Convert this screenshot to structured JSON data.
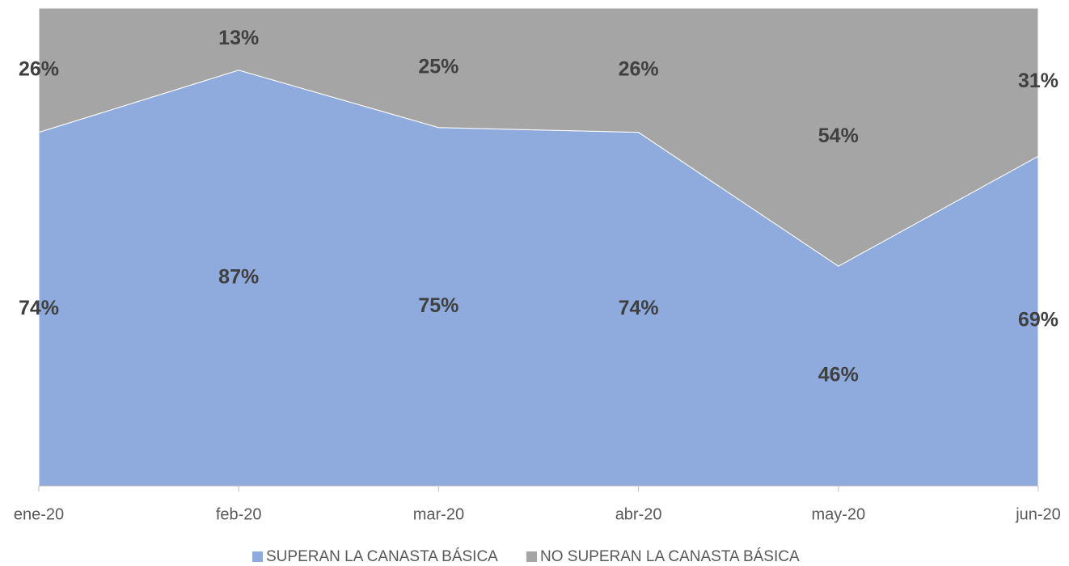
{
  "chart_data": {
    "type": "stacked_area",
    "categories": [
      "ene-20",
      "feb-20",
      "mar-20",
      "abr-20",
      "may-20",
      "jun-20"
    ],
    "series": [
      {
        "name": "SUPERAN LA CANASTA BÁSICA",
        "color": "#8faadc",
        "values": [
          74,
          87,
          75,
          74,
          46,
          69
        ],
        "value_labels": [
          "74%",
          "87%",
          "75%",
          "74%",
          "46%",
          "69%"
        ]
      },
      {
        "name": "NO SUPERAN LA CANASTA BÁSICA",
        "color": "#a5a5a5",
        "values": [
          26,
          13,
          25,
          26,
          54,
          31
        ],
        "value_labels": [
          "26%",
          "13%",
          "25%",
          "26%",
          "54%",
          "31%"
        ]
      }
    ]
  }
}
